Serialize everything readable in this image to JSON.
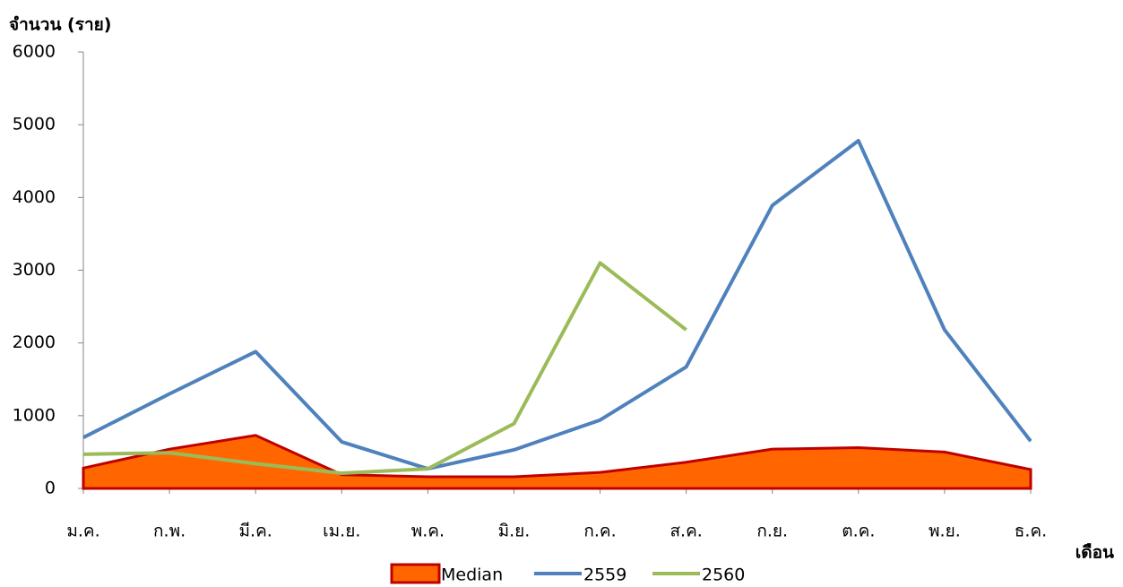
{
  "chart_data": {
    "type": "line",
    "y_label": "จำนวน (ราย)",
    "x_label": "เดือน",
    "categories": [
      "ม.ค.",
      "ก.พ.",
      "มี.ค.",
      "เม.ย.",
      "พ.ค.",
      "มิ.ย.",
      "ก.ค.",
      "ส.ค.",
      "ก.ย.",
      "ต.ค.",
      "พ.ย.",
      "ธ.ค."
    ],
    "series": [
      {
        "name": "Median",
        "type": "area",
        "color": "#ff6600",
        "edge_color": "#c00000",
        "values": [
          280,
          540,
          730,
          190,
          160,
          160,
          220,
          360,
          540,
          560,
          500,
          260
        ]
      },
      {
        "name": "2559",
        "type": "line",
        "color": "#4f81bd",
        "values": [
          700,
          1300,
          1880,
          640,
          270,
          530,
          940,
          1670,
          3890,
          4780,
          2180,
          650
        ]
      },
      {
        "name": "2560",
        "type": "line",
        "color": "#9bbb59",
        "values": [
          470,
          490,
          340,
          210,
          270,
          890,
          3100,
          2180,
          null,
          null,
          null,
          null
        ]
      }
    ],
    "ylim": [
      0,
      6000
    ],
    "yticks": [
      0,
      1000,
      2000,
      3000,
      4000,
      5000,
      6000
    ],
    "grid": false,
    "legend": "bottom"
  }
}
